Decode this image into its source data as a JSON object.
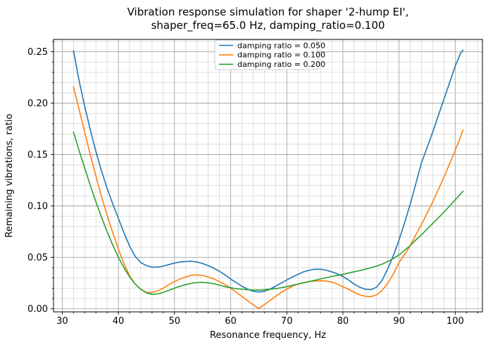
{
  "figure": {
    "background": "#ffffff"
  },
  "chart_data": {
    "type": "line",
    "title": "Vibration response simulation for shaper '2-hump EI',",
    "title_line2": "shaper_freq=65.0 Hz, damping_ratio=0.100",
    "xlabel": "Resonance frequency, Hz",
    "ylabel": "Remaining vibrations, ratio",
    "xlim": [
      28.45,
      104.85
    ],
    "ylim": [
      -0.003,
      0.262
    ],
    "x_major_ticks": [
      30,
      40,
      50,
      60,
      70,
      80,
      90,
      100
    ],
    "x_tick_labels": [
      "30",
      "40",
      "50",
      "60",
      "70",
      "80",
      "90",
      "100"
    ],
    "x_minor_step": 2,
    "y_major_ticks": [
      0.0,
      0.05,
      0.1,
      0.15,
      0.2,
      0.25
    ],
    "y_tick_labels": [
      "0.00",
      "0.05",
      "0.10",
      "0.15",
      "0.20",
      "0.25"
    ],
    "y_minor_step": 0.01,
    "grid": {
      "major_color": "#9a9a9a",
      "minor_color": "#d7d7d7",
      "on": true
    },
    "legend": {
      "position": "upper center"
    },
    "x": [
      32,
      33,
      34,
      35,
      36,
      37,
      38,
      39,
      40,
      41,
      42,
      43,
      44,
      45,
      46,
      47,
      48,
      49,
      50,
      51,
      52,
      53,
      54,
      55,
      56,
      57,
      58,
      59,
      60,
      61,
      62,
      63,
      64,
      65,
      66,
      67,
      68,
      69,
      70,
      71,
      72,
      73,
      74,
      75,
      76,
      77,
      78,
      79,
      80,
      81,
      82,
      83,
      84,
      85,
      86,
      87,
      88,
      89,
      90,
      91,
      92,
      93,
      94,
      95,
      96,
      97,
      98,
      99,
      100,
      101,
      101.4
    ],
    "series": [
      {
        "name": "damping ratio = 0.050",
        "color": "#1f77b4",
        "values": [
          0.251,
          0.222,
          0.197,
          0.174,
          0.153,
          0.134,
          0.117,
          0.102,
          0.088,
          0.074,
          0.061,
          0.051,
          0.045,
          0.042,
          0.0405,
          0.0405,
          0.0415,
          0.043,
          0.0445,
          0.0455,
          0.046,
          0.0462,
          0.0455,
          0.044,
          0.042,
          0.0395,
          0.0365,
          0.033,
          0.029,
          0.0255,
          0.022,
          0.019,
          0.017,
          0.0163,
          0.017,
          0.019,
          0.022,
          0.025,
          0.028,
          0.031,
          0.0335,
          0.036,
          0.0375,
          0.0385,
          0.0385,
          0.0375,
          0.036,
          0.034,
          0.0315,
          0.028,
          0.024,
          0.021,
          0.019,
          0.0186,
          0.021,
          0.028,
          0.039,
          0.052,
          0.067,
          0.084,
          0.102,
          0.122,
          0.142,
          0.157,
          0.172,
          0.188,
          0.204,
          0.22,
          0.236,
          0.249,
          0.2515
        ]
      },
      {
        "name": "damping ratio = 0.100",
        "color": "#ff7f0e",
        "values": [
          0.216,
          0.194,
          0.172,
          0.15,
          0.129,
          0.109,
          0.091,
          0.074,
          0.058,
          0.044,
          0.032,
          0.024,
          0.019,
          0.016,
          0.0158,
          0.0175,
          0.02,
          0.0235,
          0.0265,
          0.029,
          0.031,
          0.0325,
          0.033,
          0.0325,
          0.031,
          0.029,
          0.0265,
          0.0235,
          0.02,
          0.016,
          0.012,
          0.008,
          0.004,
          0.0003,
          0.004,
          0.008,
          0.012,
          0.016,
          0.019,
          0.022,
          0.024,
          0.0255,
          0.0265,
          0.027,
          0.0272,
          0.027,
          0.026,
          0.024,
          0.0215,
          0.019,
          0.016,
          0.0135,
          0.0122,
          0.0118,
          0.0135,
          0.018,
          0.025,
          0.034,
          0.045,
          0.053,
          0.0615,
          0.072,
          0.082,
          0.093,
          0.104,
          0.116,
          0.128,
          0.141,
          0.154,
          0.168,
          0.174
        ]
      },
      {
        "name": "damping ratio = 0.200",
        "color": "#2ca02c",
        "values": [
          0.172,
          0.154,
          0.137,
          0.12,
          0.104,
          0.089,
          0.075,
          0.062,
          0.05,
          0.04,
          0.031,
          0.024,
          0.019,
          0.0155,
          0.014,
          0.0145,
          0.016,
          0.018,
          0.02,
          0.022,
          0.0235,
          0.0248,
          0.0255,
          0.0256,
          0.0252,
          0.0243,
          0.023,
          0.0215,
          0.0205,
          0.0195,
          0.019,
          0.0185,
          0.0183,
          0.0182,
          0.0185,
          0.019,
          0.0195,
          0.0205,
          0.0215,
          0.0228,
          0.024,
          0.0252,
          0.0265,
          0.0277,
          0.029,
          0.0302,
          0.0315,
          0.0325,
          0.0335,
          0.0348,
          0.036,
          0.0372,
          0.0385,
          0.04,
          0.0415,
          0.0435,
          0.046,
          0.049,
          0.0525,
          0.057,
          0.0615,
          0.067,
          0.072,
          0.0775,
          0.083,
          0.0885,
          0.094,
          0.1,
          0.106,
          0.112,
          0.1145
        ]
      }
    ]
  }
}
